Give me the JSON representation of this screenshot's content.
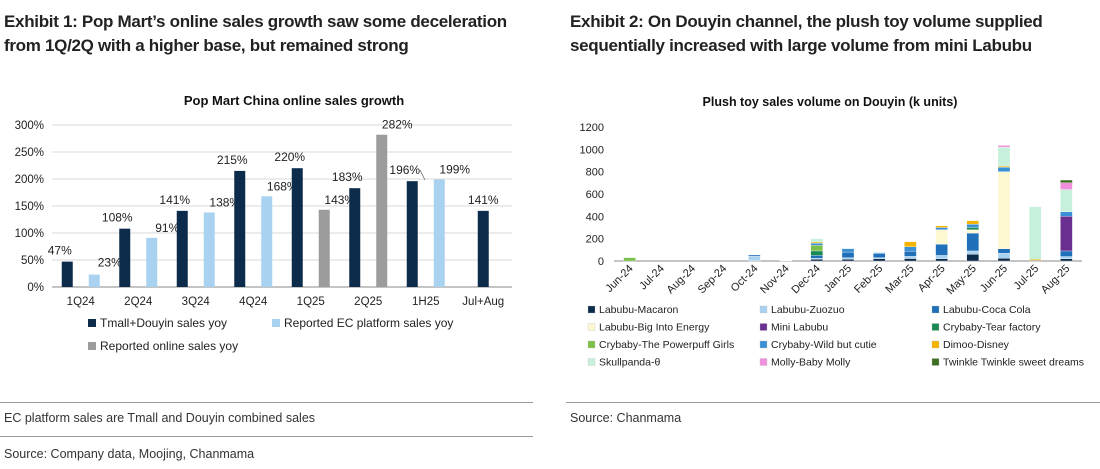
{
  "exhibit1": {
    "heading": "Exhibit 1: Pop Mart’s online sales growth saw some deceleration from 1Q/2Q with a higher base, but remained strong",
    "footnote": "EC platform sales are Tmall and Douyin combined sales",
    "source": "Source: Company data, Moojing, Chanmama"
  },
  "exhibit2": {
    "heading": "Exhibit 2: On Douyin channel, the plush toy volume supplied sequentially increased with large volume from mini Labubu",
    "source": "Source: Chanmama"
  },
  "colors": {
    "tmall_douyin": "#0d2b4a",
    "reported_ec": "#a9d1f0",
    "reported_online": "#9c9c9c"
  },
  "chart_data": [
    {
      "type": "bar",
      "title": "Pop Mart China online sales growth",
      "categories": [
        "1Q24",
        "2Q24",
        "3Q24",
        "4Q24",
        "1Q25",
        "2Q25",
        "1H25",
        "Jul+Aug"
      ],
      "ylim": [
        0,
        300
      ],
      "yticks": [
        "0%",
        "50%",
        "100%",
        "150%",
        "200%",
        "250%",
        "300%"
      ],
      "series": [
        {
          "name": "Tmall+Douyin sales yoy",
          "color": "#0d2b4a",
          "values": [
            47,
            108,
            141,
            215,
            220,
            183,
            196,
            141
          ],
          "labels": [
            "47%",
            "108%",
            "141%",
            "215%",
            "220%",
            "183%",
            "196%",
            "141%"
          ]
        },
        {
          "name": "Reported EC platform sales yoy",
          "color": "#a9d1f0",
          "values": [
            23,
            91,
            138,
            168,
            null,
            null,
            199,
            null
          ],
          "labels": [
            "23%",
            "91%",
            "138%",
            "168%",
            null,
            null,
            "199%",
            null
          ]
        },
        {
          "name": "Reported online sales yoy",
          "color": "#9c9c9c",
          "values": [
            null,
            null,
            null,
            null,
            143,
            282,
            null,
            null
          ],
          "labels": [
            null,
            null,
            null,
            null,
            "143%",
            "282%",
            null,
            null
          ]
        }
      ],
      "grid": true,
      "legend": "bottom"
    },
    {
      "type": "bar",
      "stacked": true,
      "title": "Plush toy sales volume on Douyin (k units)",
      "categories": [
        "Jun-24",
        "Jul-24",
        "Aug-24",
        "Sep-24",
        "Oct-24",
        "Nov-24",
        "Dec-24",
        "Jan-25",
        "Feb-25",
        "Mar-25",
        "Apr-25",
        "May-25",
        "Jun-25",
        "Jul-25",
        "Aug-25"
      ],
      "ylim": [
        0,
        1200
      ],
      "yticks": [
        "0",
        "200",
        "400",
        "600",
        "800",
        "1000",
        "1200"
      ],
      "series": [
        {
          "name": "Labubu-Macaron",
          "color": "#0d2b4a",
          "values": [
            0,
            0,
            0,
            0,
            4,
            0,
            15,
            15,
            20,
            22,
            20,
            60,
            25,
            5,
            20
          ]
        },
        {
          "name": "Labubu-Zuozuo",
          "color": "#a9d1f0",
          "values": [
            0,
            0,
            0,
            0,
            40,
            3,
            10,
            15,
            10,
            20,
            30,
            30,
            45,
            0,
            20
          ]
        },
        {
          "name": "Labubu-Coca Cola",
          "color": "#1f70b8",
          "values": [
            0,
            0,
            0,
            0,
            10,
            0,
            25,
            50,
            35,
            45,
            100,
            160,
            40,
            0,
            50
          ]
        },
        {
          "name": "Labubu-Big Into Energy",
          "color": "#fcf8d2",
          "values": [
            0,
            0,
            0,
            0,
            0,
            0,
            0,
            0,
            0,
            0,
            130,
            30,
            690,
            0,
            0
          ]
        },
        {
          "name": "Mini Labubu",
          "color": "#6a2e91",
          "values": [
            0,
            0,
            0,
            0,
            0,
            0,
            0,
            0,
            0,
            0,
            0,
            0,
            0,
            0,
            310
          ]
        },
        {
          "name": "Crybaby-Tear factory",
          "color": "#1a8a55",
          "values": [
            0,
            0,
            0,
            0,
            0,
            0,
            40,
            0,
            0,
            0,
            0,
            20,
            0,
            0,
            0
          ]
        },
        {
          "name": "Crybaby-The Powerpuff Girls",
          "color": "#7cc04b",
          "values": [
            30,
            0,
            0,
            0,
            0,
            0,
            50,
            0,
            0,
            0,
            0,
            0,
            0,
            0,
            0
          ]
        },
        {
          "name": "Crybaby-Wild but cutie",
          "color": "#3b8fd4",
          "values": [
            0,
            0,
            0,
            0,
            0,
            0,
            20,
            30,
            10,
            40,
            20,
            30,
            40,
            0,
            40
          ]
        },
        {
          "name": "Dimoo-Disney",
          "color": "#f5b400",
          "values": [
            0,
            0,
            0,
            0,
            0,
            0,
            10,
            0,
            0,
            45,
            15,
            30,
            10,
            10,
            0
          ]
        },
        {
          "name": "Skullpanda-θ",
          "color": "#c7f0dc",
          "values": [
            0,
            0,
            0,
            0,
            0,
            0,
            30,
            0,
            0,
            0,
            0,
            0,
            170,
            470,
            200
          ]
        },
        {
          "name": "Molly-Baby Molly",
          "color": "#f08fdb",
          "values": [
            0,
            0,
            0,
            0,
            0,
            0,
            0,
            0,
            0,
            0,
            0,
            0,
            15,
            0,
            60
          ]
        },
        {
          "name": "Twinkle Twinkle sweet dreams",
          "color": "#3e6e20",
          "values": [
            0,
            0,
            0,
            0,
            0,
            0,
            0,
            0,
            0,
            0,
            0,
            0,
            0,
            0,
            25
          ]
        }
      ],
      "grid": true,
      "legend": "bottom"
    }
  ]
}
